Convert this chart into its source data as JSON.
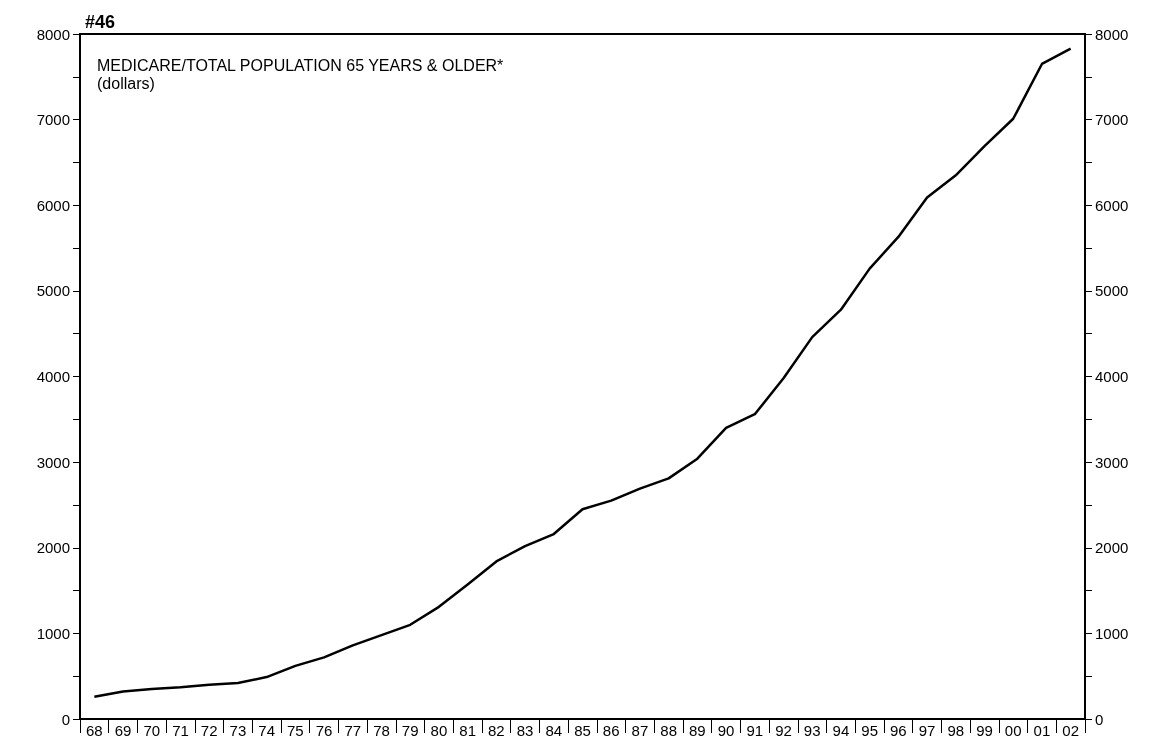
{
  "chart_data": {
    "type": "line",
    "title": "MEDICARE/TOTAL POPULATION 65 YEARS & OLDER*",
    "subtitle": "(dollars)",
    "annotations": [
      "#46"
    ],
    "categories": [
      "68",
      "69",
      "70",
      "71",
      "72",
      "73",
      "74",
      "75",
      "76",
      "77",
      "78",
      "79",
      "80",
      "81",
      "82",
      "83",
      "84",
      "85",
      "86",
      "87",
      "88",
      "89",
      "90",
      "91",
      "92",
      "93",
      "94",
      "95",
      "96",
      "97",
      "98",
      "99",
      "00",
      "01",
      "02"
    ],
    "series": [
      {
        "color": "#000000",
        "values": [
          260,
          320,
          350,
          370,
          400,
          420,
          490,
          620,
          720,
          860,
          980,
          1100,
          1310,
          1570,
          1840,
          2020,
          2160,
          2450,
          2550,
          2690,
          2810,
          3040,
          3400,
          3560,
          3980,
          4460,
          4780,
          5260,
          5630,
          6090,
          6350,
          6690,
          7010,
          7650,
          7830
        ]
      }
    ],
    "ylim": [
      0,
      8000
    ],
    "yticks": [
      0,
      {
        "value": 500,
        "label": null
      },
      1000,
      {
        "value": 1500,
        "label": null
      },
      2000,
      {
        "value": 2500,
        "label": null
      },
      3000,
      {
        "value": 3500,
        "label": null
      },
      4000,
      {
        "value": 4500,
        "label": null
      },
      5000,
      {
        "value": 5500,
        "label": null
      },
      6000,
      {
        "value": 6500,
        "label": null
      },
      7000,
      {
        "value": 7500,
        "label": null
      },
      8000
    ],
    "y2lim": [
      0,
      8000
    ],
    "y2ticks": [
      0,
      {
        "value": 500,
        "label": null
      },
      1000,
      {
        "value": 1500,
        "label": null
      },
      2000,
      {
        "value": 2500,
        "label": null
      },
      3000,
      {
        "value": 3500,
        "label": null
      },
      4000,
      {
        "value": 4500,
        "label": null
      },
      5000,
      {
        "value": 5500,
        "label": null
      },
      6000,
      {
        "value": 6500,
        "label": null
      },
      7000,
      {
        "value": 7500,
        "label": null
      },
      8000
    ],
    "grid": false,
    "marker": "none",
    "line_style": "solid"
  }
}
